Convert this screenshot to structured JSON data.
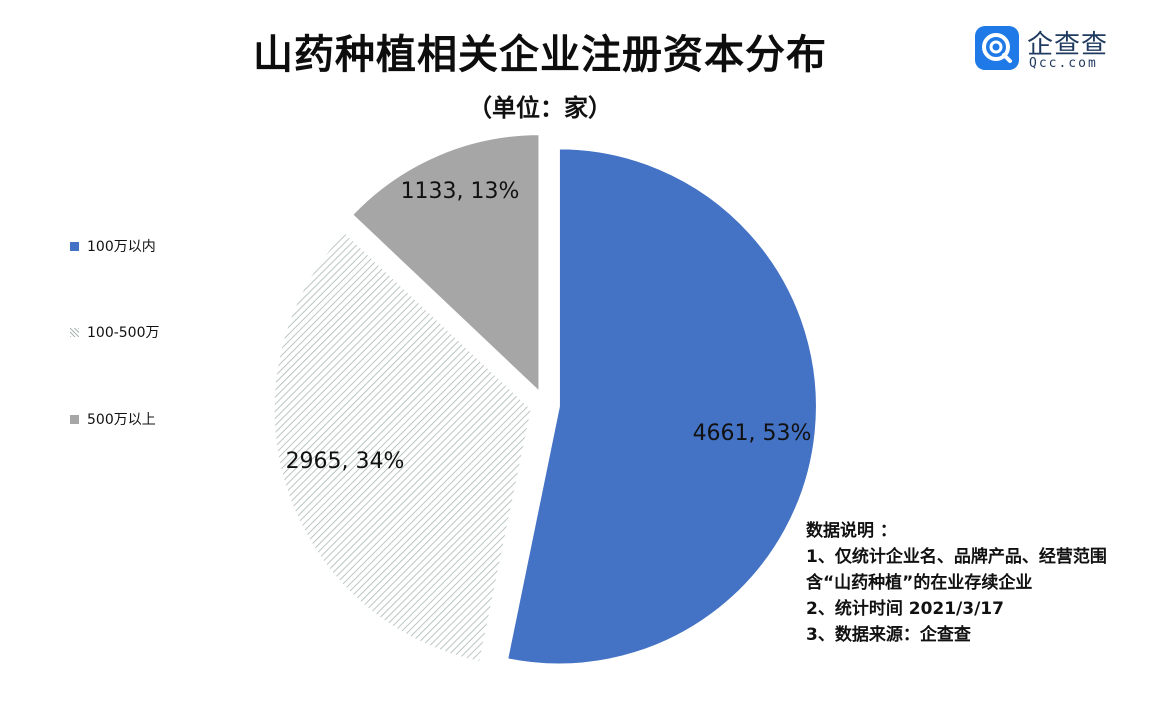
{
  "header": {
    "title": "山药种植相关企业注册资本分布",
    "unit": "（单位：家）"
  },
  "logo": {
    "name": "企查查",
    "sub": "Qcc.com",
    "color": "#1f7ae8"
  },
  "legend": [
    {
      "label": "100万以内",
      "color": "#4472c4",
      "pattern": "solid"
    },
    {
      "label": "100-500万",
      "color": "#a9b7b2",
      "pattern": "hatch"
    },
    {
      "label": "500万以上",
      "color": "#a6a6a6",
      "pattern": "solid"
    }
  ],
  "chart_data": {
    "type": "pie",
    "title": "山药种植相关企业注册资本分布",
    "unit": "（单位：家）",
    "slices": [
      {
        "name": "100万以内",
        "value": 4661,
        "percent": 53,
        "label": "4661, 53%",
        "color": "#4472c4"
      },
      {
        "name": "100-500万",
        "value": 2965,
        "percent": 34,
        "label": "2965, 34%",
        "color": "#a9b7b2"
      },
      {
        "name": "500万以上",
        "value": 1133,
        "percent": 13,
        "label": "1133, 13%",
        "color": "#a6a6a6"
      }
    ],
    "exploded": true,
    "legend_position": "left"
  },
  "notes": {
    "heading": "数据说明  ：",
    "line1": "1、仅统计企业名、品牌产品、经营范围",
    "line2": "含“山药种植”的在业存续企业",
    "line3": "2、统计时间  2021/3/17",
    "line4": "3、数据来源：企查查"
  }
}
